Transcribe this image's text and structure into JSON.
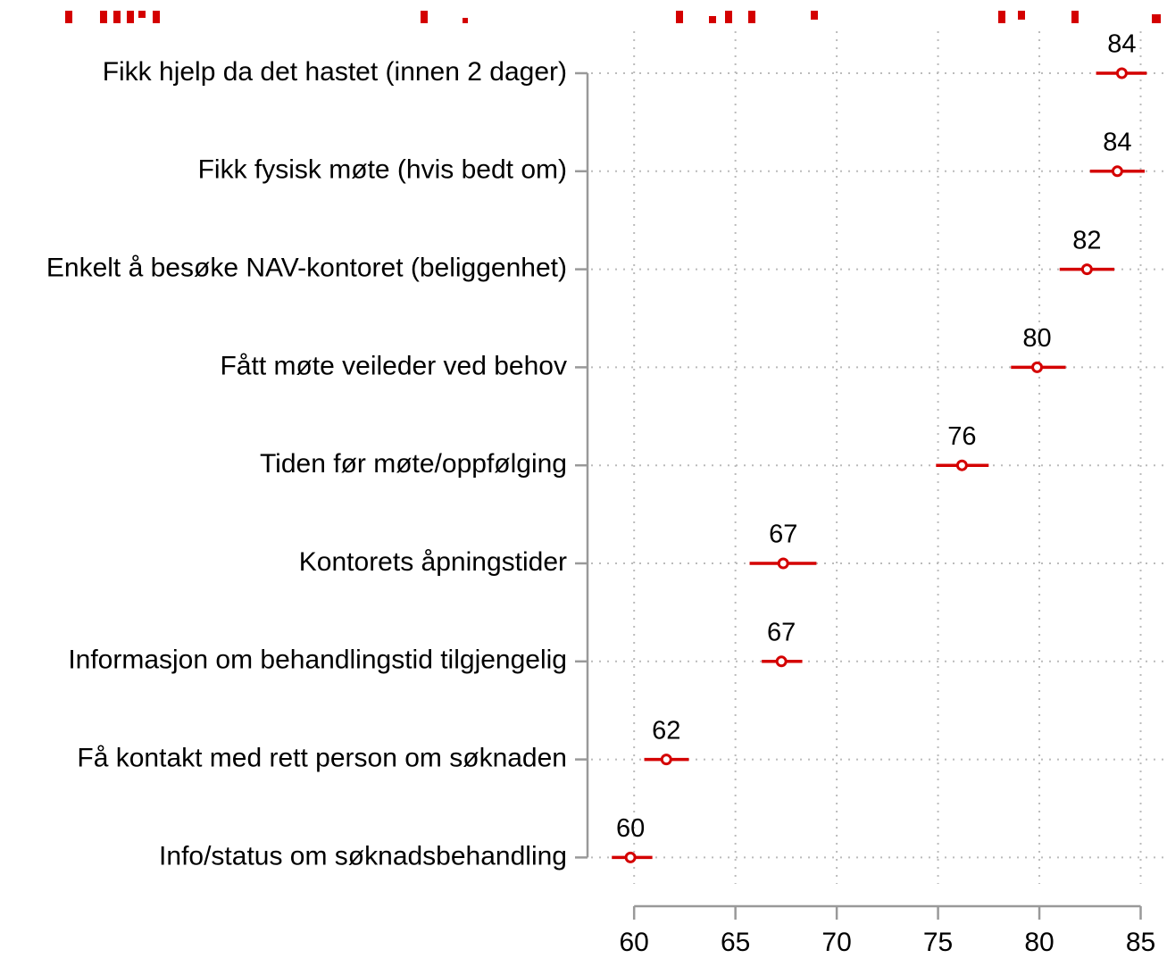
{
  "chart_data": {
    "type": "dot-errorbar",
    "categories": [
      "Fikk hjelp da det hastet (innen 2 dager)",
      "Fikk fysisk møte (hvis bedt om)",
      "Enkelt å besøke NAV-kontoret (beliggenhet)",
      "Fått møte veileder ved behov",
      "Tiden før møte/oppfølging",
      "Kontorets åpningstider",
      "Informasjon om behandlingstid tilgjengelig",
      "Få kontakt med rett person om søknaden",
      "Info/status om søknadsbehandling"
    ],
    "series": [
      {
        "color": "#d40000",
        "values": [
          84.07,
          83.85,
          82.35,
          79.89,
          76.18,
          67.36,
          67.27,
          61.59,
          59.82
        ],
        "lower": [
          82.8,
          82.5,
          81.0,
          78.6,
          74.9,
          65.7,
          66.3,
          60.5,
          58.9
        ],
        "upper": [
          85.3,
          85.2,
          83.7,
          81.3,
          77.5,
          69.0,
          68.3,
          62.7,
          60.9
        ],
        "value_labels": [
          "84",
          "84",
          "82",
          "80",
          "76",
          "67",
          "67",
          "62",
          "60"
        ]
      }
    ],
    "xlim": [
      57.7,
      86.3
    ],
    "xticks": [
      60,
      65,
      70,
      75,
      80,
      85
    ],
    "grid": true
  }
}
